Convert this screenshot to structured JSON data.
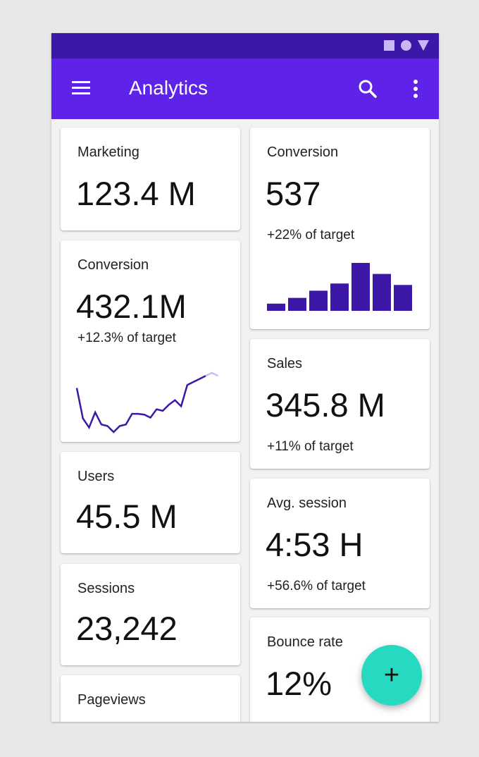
{
  "app": {
    "title": "Analytics",
    "accent_color": "#5f22e8",
    "statusbar_color": "#3d17a8",
    "fab_color": "#26d9c0",
    "icons": [
      "menu-icon",
      "search-icon",
      "more-vert-icon",
      "plus-icon"
    ]
  },
  "cards": {
    "marketing": {
      "label": "Marketing",
      "value": "123.4 M"
    },
    "conversion_line": {
      "label": "Conversion",
      "value": "432.1M",
      "sub": "+12.3% of target",
      "chart_data": {
        "type": "line",
        "values": [
          80,
          40,
          28,
          48,
          32,
          30,
          22,
          30,
          32,
          46,
          46,
          45,
          41,
          52,
          50,
          58,
          64,
          56,
          84,
          88,
          92,
          96
        ],
        "faded_tail": [
          96,
          100,
          96
        ],
        "color": "#3d17a8"
      }
    },
    "users": {
      "label": "Users",
      "value": "45.5 M"
    },
    "sessions": {
      "label": "Sessions",
      "value": "23,242"
    },
    "pageviews": {
      "label": "Pageviews"
    },
    "conversion_bar": {
      "label": "Conversion",
      "value": "537",
      "sub": "+22% of target",
      "chart_data": {
        "type": "bar",
        "values": [
          15,
          27,
          42,
          57,
          100,
          77,
          54
        ],
        "color": "#3d17a8"
      }
    },
    "sales": {
      "label": "Sales",
      "value": "345.8 M",
      "sub": "+11% of target"
    },
    "avg_session": {
      "label": "Avg. session",
      "value": "4:53 H",
      "sub": "+56.6% of target"
    },
    "bounce_rate": {
      "label": "Bounce rate",
      "value": "12%"
    }
  },
  "fab": {
    "label": "+"
  }
}
